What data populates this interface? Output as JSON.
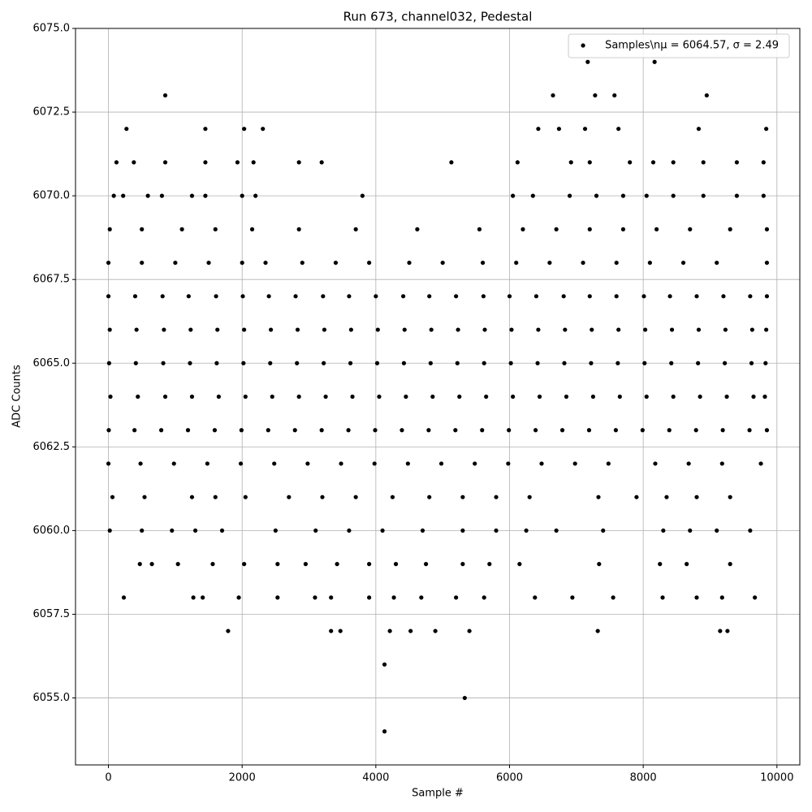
{
  "chart_data": {
    "type": "scatter",
    "title": "Run 673, channel032, Pedestal",
    "xlabel": "Sample #",
    "ylabel": "ADC Counts",
    "xlim": [
      -492.5,
      10342.5
    ],
    "ylim": [
      6053,
      6075
    ],
    "xticks": [
      0,
      2000,
      4000,
      6000,
      8000,
      10000
    ],
    "yticks": [
      {
        "value": 6055,
        "label": "6055.0"
      },
      6057.5,
      {
        "value": 6060,
        "label": "6060.0"
      },
      6062.5,
      {
        "value": 6065,
        "label": "6065.0"
      },
      6067.5,
      {
        "value": 6070,
        "label": "6070.0"
      },
      6072.5,
      {
        "value": 6075,
        "label": "6075.0"
      }
    ],
    "grid": true,
    "legend": "upper right",
    "series": [
      {
        "name": "Samples\\nμ = 6064.57, σ = 2.49",
        "color": "#000000",
        "x": [
          0,
          400,
          810,
          1200,
          1610,
          2010,
          2400,
          2800,
          3210,
          3600,
          4000,
          4410,
          4800,
          5200,
          5610,
          6000,
          6400,
          6810,
          7200,
          7600,
          8010,
          8400,
          8800,
          9200,
          9600,
          9850,
          20,
          420,
          830,
          1230,
          1630,
          2030,
          2430,
          2830,
          3230,
          3630,
          4030,
          4430,
          4830,
          5230,
          5630,
          6030,
          6430,
          6830,
          7230,
          7630,
          8030,
          8430,
          8830,
          9230,
          9630,
          9840,
          10,
          410,
          820,
          1220,
          1620,
          2020,
          2420,
          2820,
          3220,
          3620,
          4020,
          4420,
          4820,
          5220,
          5620,
          6020,
          6420,
          6820,
          7220,
          7620,
          8020,
          8420,
          8820,
          9220,
          9620,
          9830,
          30,
          440,
          850,
          1250,
          1650,
          2050,
          2450,
          2850,
          3250,
          3650,
          4050,
          4450,
          4850,
          5250,
          5650,
          6050,
          6450,
          6850,
          7250,
          7650,
          8050,
          8450,
          8850,
          9250,
          9650,
          9820,
          5,
          390,
          790,
          1190,
          1590,
          1990,
          2390,
          2790,
          3190,
          3590,
          3990,
          4390,
          4790,
          5190,
          5590,
          5990,
          6390,
          6790,
          7190,
          7590,
          7990,
          8390,
          8790,
          9190,
          9590,
          9850,
          0,
          480,
          980,
          1480,
          1980,
          2480,
          2980,
          3480,
          3980,
          4480,
          4980,
          5480,
          5980,
          6480,
          6980,
          7480,
          8180,
          8680,
          9180,
          9760,
          0,
          500,
          1000,
          1500,
          2000,
          2350,
          2900,
          3400,
          3900,
          4500,
          5000,
          5600,
          6100,
          6600,
          7100,
          7600,
          8100,
          8600,
          9100,
          9850,
          60,
          540,
          1250,
          1600,
          2050,
          2700,
          3200,
          3700,
          4250,
          4800,
          5300,
          5800,
          6300,
          7330,
          7900,
          8350,
          8800,
          9300,
          20,
          500,
          1100,
          1600,
          2150,
          2850,
          3700,
          4620,
          5550,
          6200,
          6700,
          7200,
          7700,
          8200,
          8700,
          9300,
          9850,
          20,
          500,
          950,
          1300,
          1700,
          2500,
          3100,
          3600,
          4100,
          4700,
          5300,
          5800,
          6250,
          6700,
          7400,
          8300,
          8700,
          9100,
          9600,
          80,
          220,
          590,
          800,
          1250,
          1450,
          2000,
          2200,
          3800,
          6050,
          6350,
          6900,
          7300,
          7700,
          8050,
          8450,
          8900,
          9400,
          9800,
          120,
          380,
          850,
          1450,
          1930,
          2170,
          2850,
          3190,
          5130,
          6120,
          6920,
          7200,
          7800,
          8150,
          8450,
          8900,
          9400,
          9800,
          470,
          650,
          1040,
          1560,
          2030,
          2530,
          2950,
          3420,
          3900,
          4300,
          4750,
          5300,
          5700,
          6150,
          7340,
          8250,
          8650,
          9300,
          230,
          1270,
          1410,
          1950,
          2530,
          3090,
          3330,
          3900,
          4270,
          4680,
          5200,
          5620,
          6380,
          6940,
          7550,
          8290,
          8800,
          9180,
          9670,
          270,
          1450,
          2030,
          2310,
          6430,
          6740,
          7130,
          7630,
          8830,
          9840,
          850,
          6650,
          7280,
          7570,
          8950,
          7170,
          8170,
          1790,
          3330,
          3470,
          4210,
          4520,
          4890,
          5400,
          7320,
          9150,
          9260,
          4130,
          5330,
          4130
        ],
        "values": [
          6067,
          6067,
          6067,
          6067,
          6067,
          6067,
          6067,
          6067,
          6067,
          6067,
          6067,
          6067,
          6067,
          6067,
          6067,
          6067,
          6067,
          6067,
          6067,
          6067,
          6067,
          6067,
          6067,
          6067,
          6067,
          6067,
          6066,
          6066,
          6066,
          6066,
          6066,
          6066,
          6066,
          6066,
          6066,
          6066,
          6066,
          6066,
          6066,
          6066,
          6066,
          6066,
          6066,
          6066,
          6066,
          6066,
          6066,
          6066,
          6066,
          6066,
          6066,
          6066,
          6065,
          6065,
          6065,
          6065,
          6065,
          6065,
          6065,
          6065,
          6065,
          6065,
          6065,
          6065,
          6065,
          6065,
          6065,
          6065,
          6065,
          6065,
          6065,
          6065,
          6065,
          6065,
          6065,
          6065,
          6065,
          6065,
          6064,
          6064,
          6064,
          6064,
          6064,
          6064,
          6064,
          6064,
          6064,
          6064,
          6064,
          6064,
          6064,
          6064,
          6064,
          6064,
          6064,
          6064,
          6064,
          6064,
          6064,
          6064,
          6064,
          6064,
          6064,
          6064,
          6063,
          6063,
          6063,
          6063,
          6063,
          6063,
          6063,
          6063,
          6063,
          6063,
          6063,
          6063,
          6063,
          6063,
          6063,
          6063,
          6063,
          6063,
          6063,
          6063,
          6063,
          6063,
          6063,
          6063,
          6063,
          6063,
          6062,
          6062,
          6062,
          6062,
          6062,
          6062,
          6062,
          6062,
          6062,
          6062,
          6062,
          6062,
          6062,
          6062,
          6062,
          6062,
          6062,
          6062,
          6062,
          6062,
          6068,
          6068,
          6068,
          6068,
          6068,
          6068,
          6068,
          6068,
          6068,
          6068,
          6068,
          6068,
          6068,
          6068,
          6068,
          6068,
          6068,
          6068,
          6068,
          6068,
          6061,
          6061,
          6061,
          6061,
          6061,
          6061,
          6061,
          6061,
          6061,
          6061,
          6061,
          6061,
          6061,
          6061,
          6061,
          6061,
          6061,
          6061,
          6069,
          6069,
          6069,
          6069,
          6069,
          6069,
          6069,
          6069,
          6069,
          6069,
          6069,
          6069,
          6069,
          6069,
          6069,
          6069,
          6069,
          6060,
          6060,
          6060,
          6060,
          6060,
          6060,
          6060,
          6060,
          6060,
          6060,
          6060,
          6060,
          6060,
          6060,
          6060,
          6060,
          6060,
          6060,
          6060,
          6070,
          6070,
          6070,
          6070,
          6070,
          6070,
          6070,
          6070,
          6070,
          6070,
          6070,
          6070,
          6070,
          6070,
          6070,
          6070,
          6070,
          6070,
          6070,
          6071,
          6071,
          6071,
          6071,
          6071,
          6071,
          6071,
          6071,
          6071,
          6071,
          6071,
          6071,
          6071,
          6071,
          6071,
          6071,
          6071,
          6071,
          6059,
          6059,
          6059,
          6059,
          6059,
          6059,
          6059,
          6059,
          6059,
          6059,
          6059,
          6059,
          6059,
          6059,
          6059,
          6059,
          6059,
          6059,
          6058,
          6058,
          6058,
          6058,
          6058,
          6058,
          6058,
          6058,
          6058,
          6058,
          6058,
          6058,
          6058,
          6058,
          6058,
          6058,
          6058,
          6058,
          6058,
          6072,
          6072,
          6072,
          6072,
          6072,
          6072,
          6072,
          6072,
          6072,
          6072,
          6073,
          6073,
          6073,
          6073,
          6073,
          6074,
          6074,
          6057,
          6057,
          6057,
          6057,
          6057,
          6057,
          6057,
          6057,
          6057,
          6057,
          6056,
          6055,
          6054
        ]
      }
    ]
  }
}
